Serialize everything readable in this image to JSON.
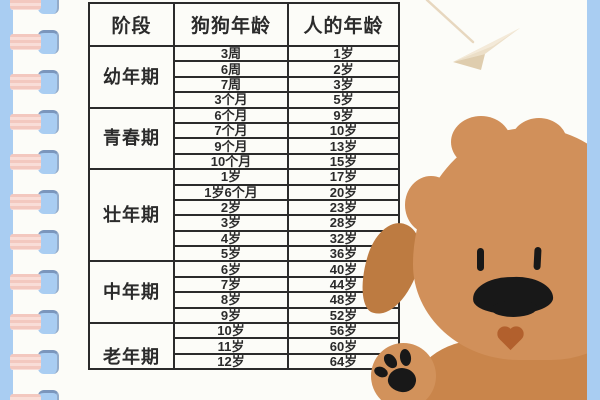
{
  "page": {
    "background_color": "#a9cdf2",
    "paper_color": "#fcfcf8",
    "table_line_color": "#2b2b2b"
  },
  "table": {
    "headers": {
      "stage": "阶段",
      "dog_age": "狗狗年龄",
      "human_age": "人的年龄"
    },
    "groups": [
      {
        "stage": "幼年期",
        "rows": [
          [
            "3周",
            "1岁"
          ],
          [
            "6周",
            "2岁"
          ],
          [
            "7周",
            "3岁"
          ],
          [
            "3个月",
            "5岁"
          ]
        ]
      },
      {
        "stage": "青春期",
        "rows": [
          [
            "6个月",
            "9岁"
          ],
          [
            "7个月",
            "10岁"
          ],
          [
            "9个月",
            "13岁"
          ],
          [
            "10个月",
            "15岁"
          ]
        ]
      },
      {
        "stage": "壮年期",
        "rows": [
          [
            "1岁",
            "17岁"
          ],
          [
            "1岁6个月",
            "20岁"
          ],
          [
            "2岁",
            "23岁"
          ],
          [
            "3岁",
            "28岁"
          ],
          [
            "4岁",
            "32岁"
          ],
          [
            "5岁",
            "36岁"
          ]
        ]
      },
      {
        "stage": "中年期",
        "rows": [
          [
            "6岁",
            "40岁"
          ],
          [
            "7岁",
            "44岁"
          ],
          [
            "8岁",
            "48岁"
          ],
          [
            "9岁",
            "52岁"
          ]
        ]
      },
      {
        "stage": "老年期",
        "rows": [
          [
            "10岁",
            "56岁"
          ],
          [
            "11岁",
            "60岁"
          ],
          [
            "12岁",
            "64岁"
          ]
        ]
      }
    ]
  },
  "chart_data": {
    "type": "table",
    "columns": [
      "阶段",
      "狗狗年龄",
      "人的年龄"
    ],
    "rows": [
      [
        "幼年期",
        "3周",
        "1岁"
      ],
      [
        "幼年期",
        "6周",
        "2岁"
      ],
      [
        "幼年期",
        "7周",
        "3岁"
      ],
      [
        "幼年期",
        "3个月",
        "5岁"
      ],
      [
        "青春期",
        "6个月",
        "9岁"
      ],
      [
        "青春期",
        "7个月",
        "10岁"
      ],
      [
        "青春期",
        "9个月",
        "13岁"
      ],
      [
        "青春期",
        "10个月",
        "15岁"
      ],
      [
        "壮年期",
        "1岁",
        "17岁"
      ],
      [
        "壮年期",
        "1岁6个月",
        "20岁"
      ],
      [
        "壮年期",
        "2岁",
        "23岁"
      ],
      [
        "壮年期",
        "3岁",
        "28岁"
      ],
      [
        "壮年期",
        "4岁",
        "32岁"
      ],
      [
        "壮年期",
        "5岁",
        "36岁"
      ],
      [
        "中年期",
        "6岁",
        "40岁"
      ],
      [
        "中年期",
        "7岁",
        "44岁"
      ],
      [
        "中年期",
        "8岁",
        "48岁"
      ],
      [
        "中年期",
        "9岁",
        "52岁"
      ],
      [
        "老年期",
        "10岁",
        "56岁"
      ],
      [
        "老年期",
        "11岁",
        "60岁"
      ],
      [
        "老年期",
        "12岁",
        "64岁"
      ]
    ]
  },
  "decorations": {
    "spiral_binding": "notebook-spiral-rings",
    "ring_count": 11,
    "paper_airplane": "paper-airplane-doodle",
    "dog_illustration": "brown-fluffy-puppy"
  },
  "colors": {
    "dog_fur": "#d1905a",
    "dog_ear": "#bd7b41",
    "dog_body": "#c9854b",
    "dog_nose_eyes_pads": "#181818",
    "dog_mouth": "#b2602d",
    "ring_pink": "#f3c8bf",
    "ring_blue": "#a9cdf2"
  }
}
